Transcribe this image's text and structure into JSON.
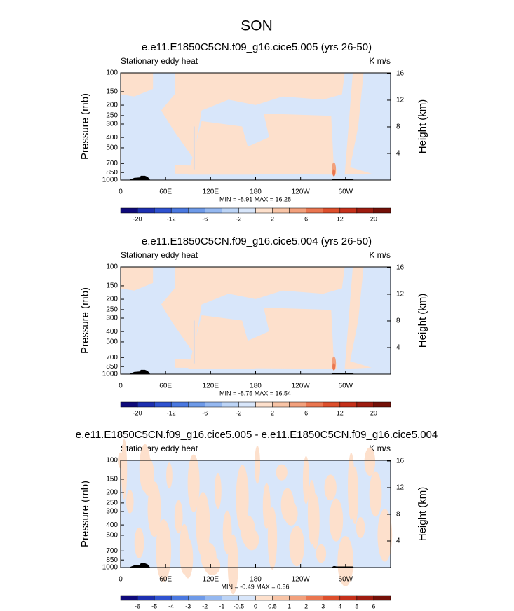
{
  "title": "SON",
  "chart_data": [
    {
      "type": "contour",
      "title": "e.e11.E1850C5CN.f09_g16.cice5.005 (yrs 26-50)",
      "subtitle": "Stationary eddy heat",
      "units": "K m/s",
      "ylabel": "Pressure (mb)",
      "y2label": "Height (km)",
      "log_y": true,
      "ylim": [
        1000,
        100
      ],
      "yticks": [
        100,
        150,
        200,
        250,
        300,
        400,
        500,
        700,
        850,
        1000
      ],
      "y2lim": [
        0,
        16.1
      ],
      "y2ticks": [
        4,
        8,
        12,
        16
      ],
      "xlim": [
        0,
        360
      ],
      "xticks": [
        0,
        {
          "value": 60,
          "label": "60E"
        },
        {
          "value": 120,
          "label": "120E"
        },
        180,
        {
          "value": 240,
          "label": "120W"
        },
        {
          "value": 300,
          "label": "60W"
        }
      ],
      "stats": "MIN = -8.91   MAX = 16.28",
      "colorbar": {
        "colors": [
          "#0f0a7a",
          "#1d2fb0",
          "#2f52d0",
          "#4a78e0",
          "#6e9ae8",
          "#95b8f0",
          "#bcd4f6",
          "#d8e6fa",
          "#fde0cc",
          "#f8c4a6",
          "#f2a07c",
          "#ea7650",
          "#dd4f2c",
          "#c5301a",
          "#9e1c10",
          "#741008"
        ],
        "levels": [
          -20,
          null,
          -12,
          null,
          -6,
          null,
          -2,
          null,
          2,
          null,
          6,
          null,
          12,
          null,
          20
        ]
      }
    },
    {
      "type": "contour",
      "title": "e.e11.E1850C5CN.f09_g16.cice5.004 (yrs 26-50)",
      "subtitle": "Stationary eddy heat",
      "units": "K m/s",
      "ylabel": "Pressure (mb)",
      "y2label": "Height (km)",
      "log_y": true,
      "ylim": [
        1000,
        100
      ],
      "yticks": [
        100,
        150,
        200,
        250,
        300,
        400,
        500,
        700,
        850,
        1000
      ],
      "y2lim": [
        0,
        16.1
      ],
      "y2ticks": [
        4,
        8,
        12,
        16
      ],
      "xlim": [
        0,
        360
      ],
      "xticks": [
        0,
        {
          "value": 60,
          "label": "60E"
        },
        {
          "value": 120,
          "label": "120E"
        },
        180,
        {
          "value": 240,
          "label": "120W"
        },
        {
          "value": 300,
          "label": "60W"
        }
      ],
      "stats": "MIN = -8.75   MAX = 16.54",
      "colorbar": {
        "colors": [
          "#0f0a7a",
          "#1d2fb0",
          "#2f52d0",
          "#4a78e0",
          "#6e9ae8",
          "#95b8f0",
          "#bcd4f6",
          "#d8e6fa",
          "#fde0cc",
          "#f8c4a6",
          "#f2a07c",
          "#ea7650",
          "#dd4f2c",
          "#c5301a",
          "#9e1c10",
          "#741008"
        ],
        "levels": [
          -20,
          null,
          -12,
          null,
          -6,
          null,
          -2,
          null,
          2,
          null,
          6,
          null,
          12,
          null,
          20
        ]
      }
    },
    {
      "type": "contour",
      "title": "e.e11.E1850C5CN.f09_g16.cice5.005 - e.e11.E1850C5CN.f09_g16.cice5.004",
      "subtitle": "Stationary eddy heat",
      "units": "K m/s",
      "ylabel": "Pressure (mb)",
      "y2label": "Height (km)",
      "log_y": true,
      "ylim": [
        1000,
        100
      ],
      "yticks": [
        100,
        150,
        200,
        250,
        300,
        400,
        500,
        700,
        850,
        1000
      ],
      "y2lim": [
        0,
        16.1
      ],
      "y2ticks": [
        4,
        8,
        12,
        16
      ],
      "xlim": [
        0,
        360
      ],
      "xticks": [
        0,
        {
          "value": 60,
          "label": "60E"
        },
        {
          "value": 120,
          "label": "120E"
        },
        180,
        {
          "value": 240,
          "label": "120W"
        },
        {
          "value": 300,
          "label": "60W"
        }
      ],
      "stats": "MIN = -0.49   MAX =  0.56",
      "colorbar": {
        "colors": [
          "#0f0a7a",
          "#1d2fb0",
          "#2f52d0",
          "#4a78e0",
          "#6e9ae8",
          "#95b8f0",
          "#bcd4f6",
          "#d8e6fa",
          "#fde0cc",
          "#f8c4a6",
          "#f2a07c",
          "#ea7650",
          "#dd4f2c",
          "#c5301a",
          "#9e1c10",
          "#741008"
        ],
        "levels": [
          -6,
          -5,
          -4,
          -3,
          -2,
          -1,
          -0.5,
          0,
          0.5,
          1,
          2,
          3,
          4,
          5,
          6
        ]
      }
    }
  ]
}
